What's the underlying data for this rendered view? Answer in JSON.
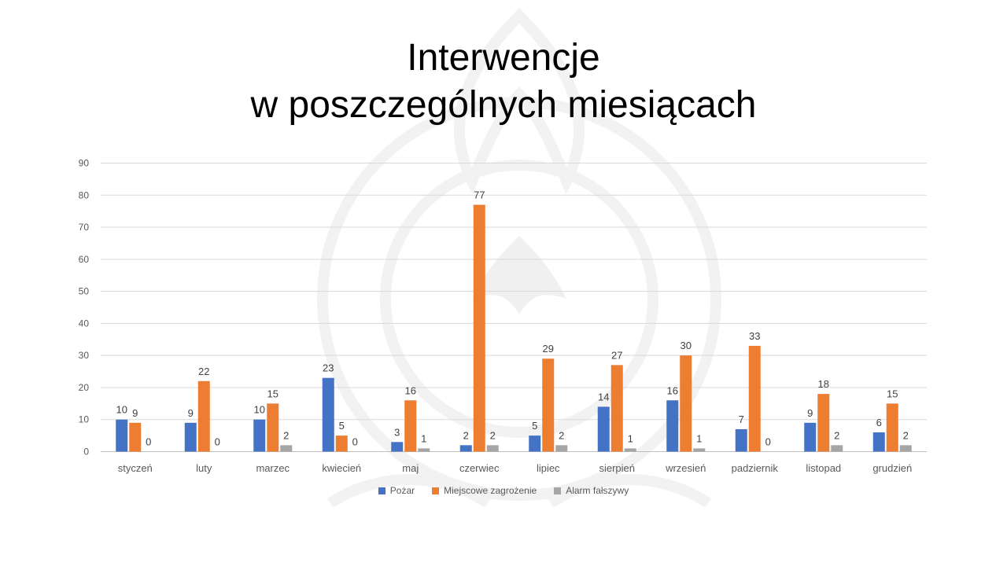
{
  "title_line1": "Interwencje",
  "title_line2": "w poszczególnych miesiącach",
  "chart_data": {
    "type": "bar",
    "categories": [
      "styczeń",
      "luty",
      "marzec",
      "kwiecień",
      "maj",
      "czerwiec",
      "lipiec",
      "sierpień",
      "wrzesień",
      "padziernik",
      "listopad",
      "grudzień"
    ],
    "series": [
      {
        "name": "Pożar",
        "color": "#4472c4",
        "values": [
          10,
          9,
          10,
          23,
          3,
          2,
          5,
          14,
          16,
          7,
          9,
          6
        ]
      },
      {
        "name": "Miejscowe zagrożenie",
        "color": "#ed7d31",
        "values": [
          9,
          22,
          15,
          5,
          16,
          77,
          29,
          27,
          30,
          33,
          18,
          15
        ]
      },
      {
        "name": "Alarm fałszywy",
        "color": "#a5a5a5",
        "values": [
          0,
          0,
          2,
          0,
          1,
          2,
          2,
          1,
          1,
          0,
          2,
          2
        ]
      }
    ],
    "ylim": [
      0,
      90
    ],
    "yticks": [
      0,
      10,
      20,
      30,
      40,
      50,
      60,
      70,
      80,
      90
    ],
    "grid": true,
    "legend_position": "bottom",
    "data_labels": true
  }
}
